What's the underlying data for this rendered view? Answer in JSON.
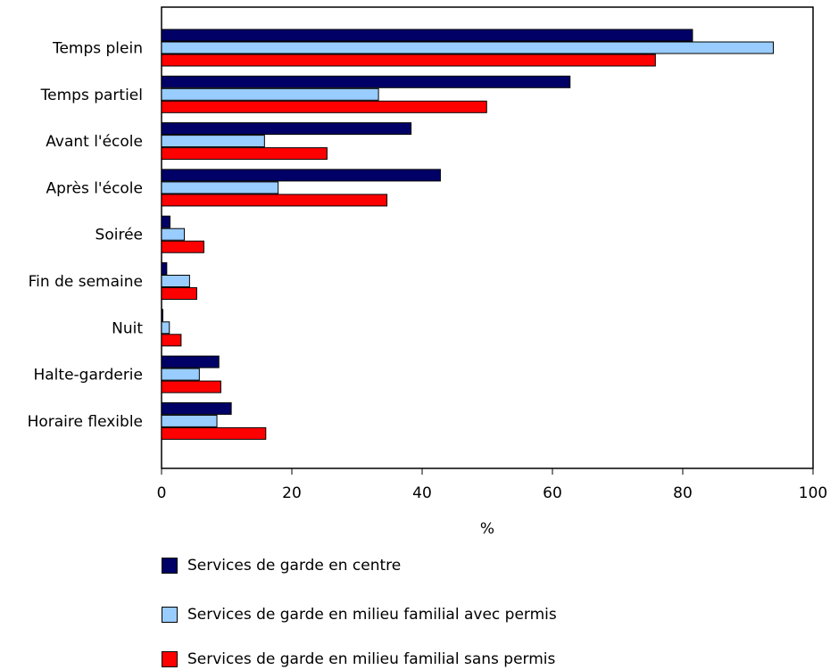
{
  "chart_data": {
    "type": "bar",
    "orientation": "horizontal",
    "categories": [
      "Temps plein",
      "Temps partiel",
      "Avant l'école",
      "Après l'école",
      "Soirée",
      "Fin de semaine",
      "Nuit",
      "Halte-garderie",
      "Horaire flexible"
    ],
    "series": [
      {
        "name": "Services de garde en centre",
        "color": "#000066",
        "values": [
          81.5,
          62.7,
          38.3,
          42.8,
          1.3,
          0.8,
          0.2,
          8.8,
          10.7
        ]
      },
      {
        "name": "Services de garde en milieu familial avec permis",
        "color": "#99ccff",
        "values": [
          93.9,
          33.3,
          15.8,
          17.9,
          3.5,
          4.3,
          1.2,
          5.8,
          8.5
        ]
      },
      {
        "name": "Services de garde en milieu familial sans permis",
        "color": "#ff0000",
        "values": [
          75.8,
          49.9,
          25.4,
          34.6,
          6.5,
          5.4,
          3.0,
          9.1,
          16.0
        ]
      }
    ],
    "xlabel": "%",
    "xlim": [
      0,
      100
    ],
    "xticks": [
      "0",
      "20",
      "40",
      "60",
      "80",
      "100"
    ],
    "grid": false,
    "legend_position": "bottom"
  }
}
